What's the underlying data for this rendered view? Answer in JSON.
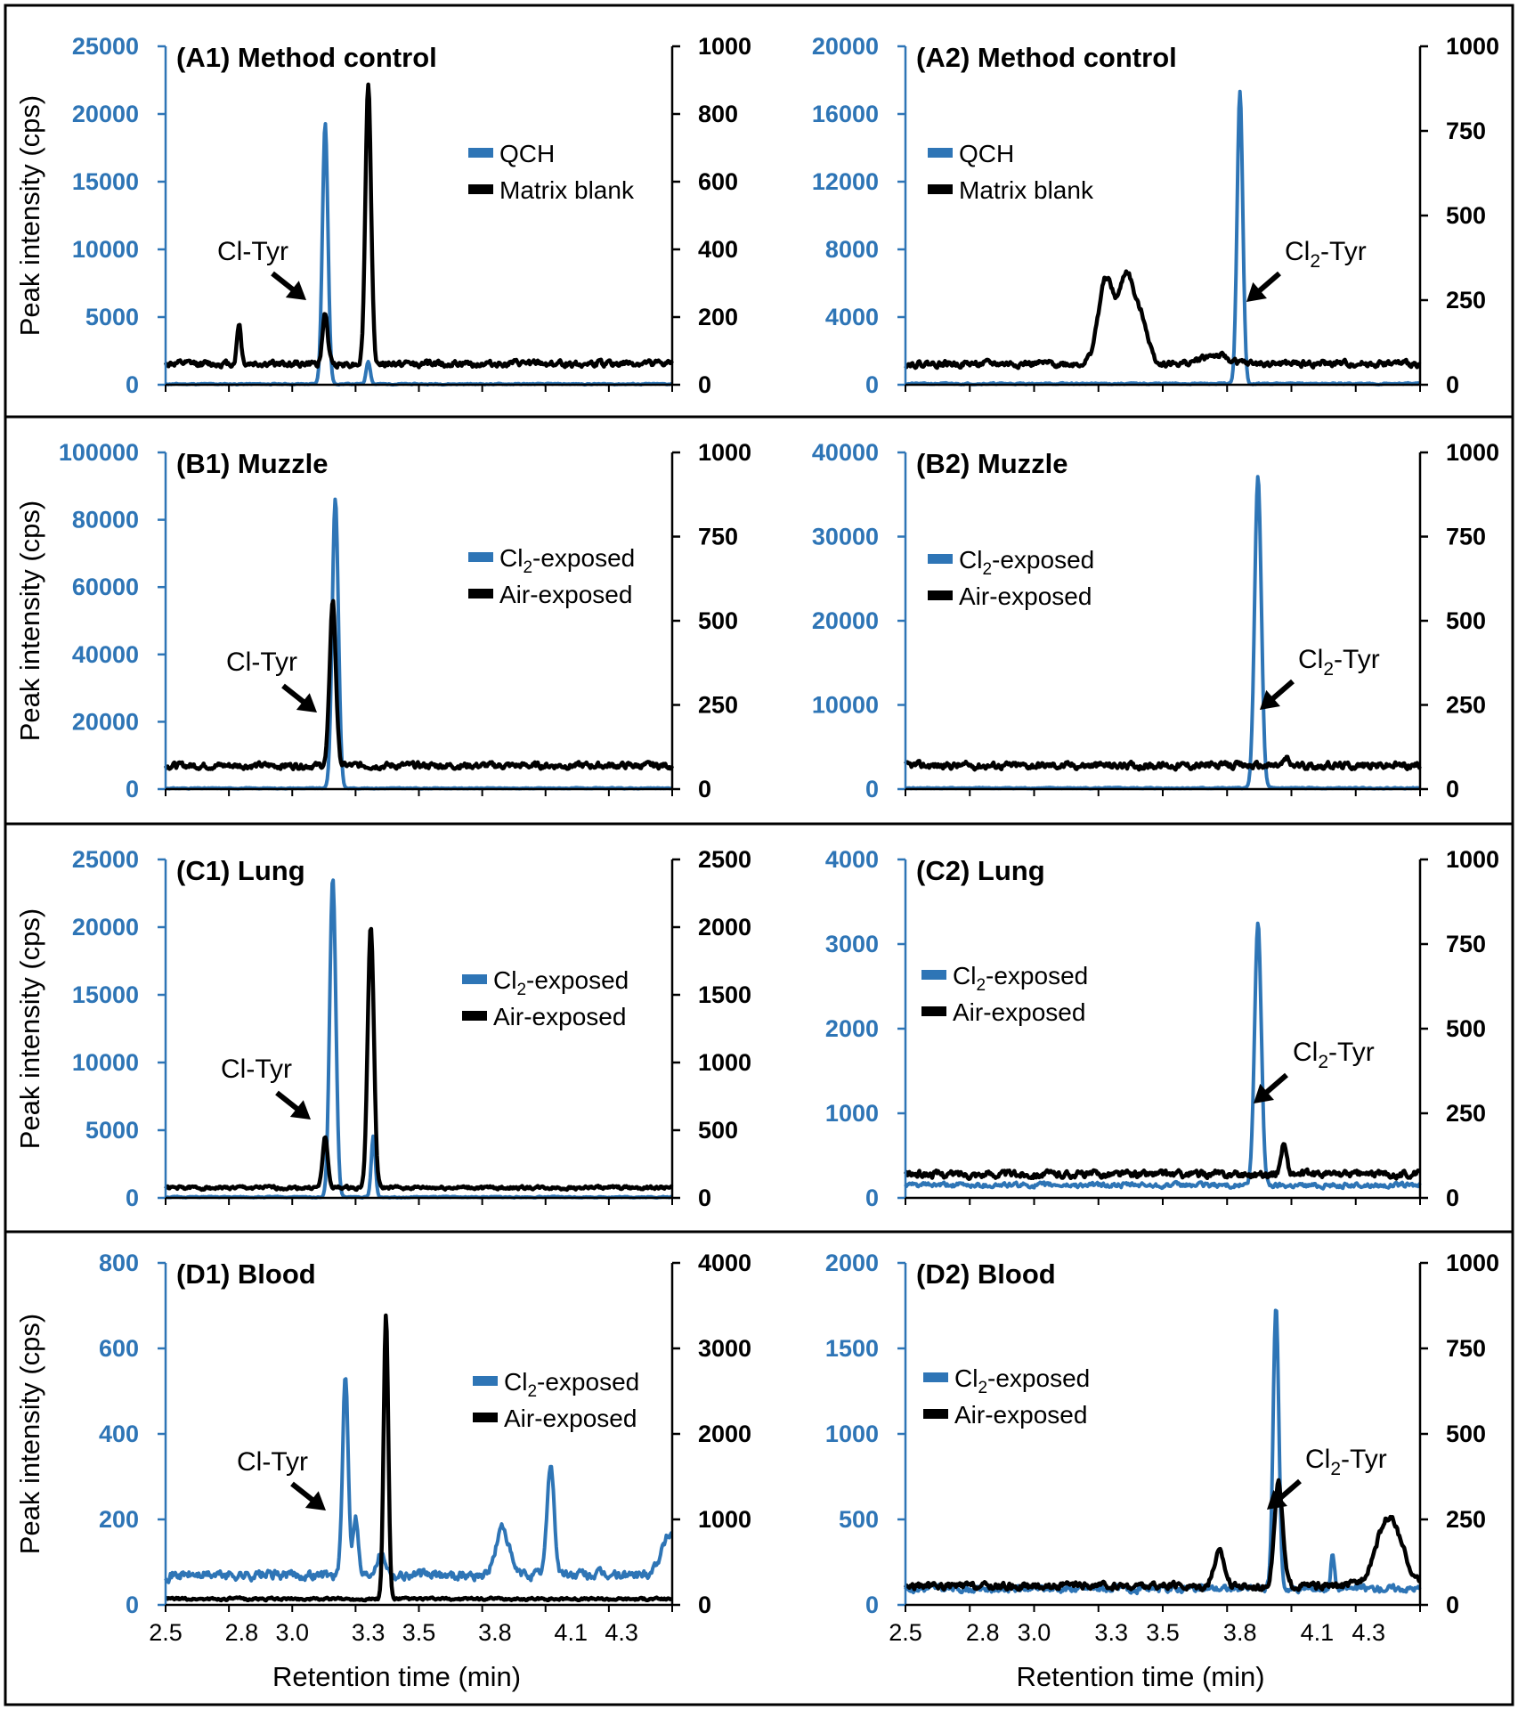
{
  "figure": {
    "y_label": "Peak intensity (cps)",
    "x_label": "Retention time (min)"
  },
  "colors": {
    "blue": "#2E75B6",
    "black": "#000000"
  },
  "chart_data": [
    {
      "type": "line",
      "panel": "A1",
      "title": "(A1) Method control",
      "xlim": [
        2.5,
        4.5
      ],
      "x_ticks": [
        2.5,
        2.8,
        3.0,
        3.3,
        3.5,
        3.8,
        4.1,
        4.3
      ],
      "y_left": {
        "lim": [
          0,
          25000
        ],
        "ticks": [
          0,
          5000,
          10000,
          15000,
          20000,
          25000
        ]
      },
      "y_right": {
        "lim": [
          0,
          1000
        ],
        "ticks": [
          0,
          200,
          400,
          600,
          800,
          1000
        ]
      },
      "series": [
        {
          "name": "QCH",
          "axis": "left",
          "color": "#2E75B6",
          "baseline": 50,
          "noise": 40,
          "seed": 11,
          "peaks": [
            {
              "x": 3.13,
              "height": 19300,
              "width": 0.011
            },
            {
              "x": 3.3,
              "height": 1700,
              "width": 0.008
            }
          ]
        },
        {
          "name": "Matrix blank",
          "axis": "right",
          "color": "#000000",
          "baseline": 62,
          "noise": 9,
          "seed": 12,
          "peaks": [
            {
              "x": 2.79,
              "height": 120,
              "width": 0.008
            },
            {
              "x": 3.13,
              "height": 150,
              "width": 0.01
            },
            {
              "x": 3.3,
              "height": 830,
              "width": 0.011
            }
          ]
        }
      ],
      "annotation": {
        "base": "Cl",
        "sub": "",
        "tail": "-Tyr"
      }
    },
    {
      "type": "line",
      "panel": "A2",
      "title": "(A2) Method control",
      "xlim": [
        2.5,
        4.5
      ],
      "x_ticks": [
        2.5,
        2.8,
        3.0,
        3.3,
        3.5,
        3.8,
        4.1,
        4.3
      ],
      "y_left": {
        "lim": [
          0,
          20000
        ],
        "ticks": [
          0,
          4000,
          8000,
          12000,
          16000,
          20000
        ]
      },
      "y_right": {
        "lim": [
          0,
          1000
        ],
        "ticks": [
          0,
          250,
          500,
          750,
          1000
        ]
      },
      "series": [
        {
          "name": "QCH",
          "axis": "left",
          "color": "#2E75B6",
          "baseline": 60,
          "noise": 40,
          "seed": 21,
          "peaks": [
            {
              "x": 3.8,
              "height": 17300,
              "width": 0.011
            }
          ]
        },
        {
          "name": "Matrix blank",
          "axis": "right",
          "color": "#000000",
          "baseline": 62,
          "noise": 9,
          "seed": 22,
          "peaks": [
            {
              "x": 3.28,
              "height": 250,
              "width": 0.03
            },
            {
              "x": 3.36,
              "height": 260,
              "width": 0.028
            },
            {
              "x": 3.42,
              "height": 120,
              "width": 0.025
            },
            {
              "x": 3.7,
              "height": 25,
              "width": 0.05
            }
          ]
        }
      ],
      "annotation": {
        "base": "Cl",
        "sub": "2",
        "tail": "-Tyr"
      }
    },
    {
      "type": "line",
      "panel": "B1",
      "title": "(B1) Muzzle",
      "xlim": [
        2.5,
        4.5
      ],
      "x_ticks": [
        2.5,
        2.8,
        3.0,
        3.3,
        3.5,
        3.8,
        4.1,
        4.3
      ],
      "y_left": {
        "lim": [
          0,
          100000
        ],
        "ticks": [
          0,
          20000,
          40000,
          60000,
          80000,
          100000
        ]
      },
      "y_right": {
        "lim": [
          0,
          1000
        ],
        "ticks": [
          0,
          250,
          500,
          750,
          1000
        ]
      },
      "series": [
        {
          "name": "Cl2-exposed",
          "label_base": "Cl",
          "label_sub": "2",
          "label_tail": "-exposed",
          "axis": "left",
          "color": "#2E75B6",
          "baseline": 250,
          "noise": 120,
          "seed": 31,
          "peaks": [
            {
              "x": 3.17,
              "height": 86000,
              "width": 0.012
            }
          ]
        },
        {
          "name": "Air-exposed",
          "axis": "right",
          "color": "#000000",
          "baseline": 70,
          "noise": 9,
          "seed": 32,
          "peaks": [
            {
              "x": 3.16,
              "height": 490,
              "width": 0.012
            }
          ]
        }
      ],
      "annotation": {
        "base": "Cl",
        "sub": "",
        "tail": "-Tyr"
      }
    },
    {
      "type": "line",
      "panel": "B2",
      "title": "(B2) Muzzle",
      "xlim": [
        2.5,
        4.5
      ],
      "x_ticks": [
        2.5,
        2.8,
        3.0,
        3.3,
        3.5,
        3.8,
        4.1,
        4.3
      ],
      "y_left": {
        "lim": [
          0,
          40000
        ],
        "ticks": [
          0,
          10000,
          20000,
          30000,
          40000
        ]
      },
      "y_right": {
        "lim": [
          0,
          1000
        ],
        "ticks": [
          0,
          250,
          500,
          750,
          1000
        ]
      },
      "series": [
        {
          "name": "Cl2-exposed",
          "label_base": "Cl",
          "label_sub": "2",
          "label_tail": "-exposed",
          "axis": "left",
          "color": "#2E75B6",
          "baseline": 120,
          "noise": 60,
          "seed": 41,
          "peaks": [
            {
              "x": 3.87,
              "height": 37000,
              "width": 0.013
            }
          ]
        },
        {
          "name": "Air-exposed",
          "axis": "right",
          "color": "#000000",
          "baseline": 70,
          "noise": 10,
          "seed": 42,
          "peaks": [
            {
              "x": 3.98,
              "height": 20,
              "width": 0.01
            }
          ]
        }
      ],
      "annotation": {
        "base": "Cl",
        "sub": "2",
        "tail": "-Tyr"
      }
    },
    {
      "type": "line",
      "panel": "C1",
      "title": "(C1) Lung",
      "xlim": [
        2.5,
        4.5
      ],
      "x_ticks": [
        2.5,
        2.8,
        3.0,
        3.3,
        3.5,
        3.8,
        4.1,
        4.3
      ],
      "y_left": {
        "lim": [
          0,
          25000
        ],
        "ticks": [
          0,
          5000,
          10000,
          15000,
          20000,
          25000
        ]
      },
      "y_right": {
        "lim": [
          0,
          2500
        ],
        "ticks": [
          0,
          500,
          1000,
          1500,
          2000,
          2500
        ]
      },
      "series": [
        {
          "name": "Cl2-exposed",
          "label_base": "Cl",
          "label_sub": "2",
          "label_tail": "-exposed",
          "axis": "left",
          "color": "#2E75B6",
          "baseline": 60,
          "noise": 40,
          "seed": 51,
          "peaks": [
            {
              "x": 3.16,
              "height": 23600,
              "width": 0.012
            },
            {
              "x": 3.32,
              "height": 4500,
              "width": 0.008
            }
          ]
        },
        {
          "name": "Air-exposed",
          "axis": "right",
          "color": "#000000",
          "baseline": 75,
          "noise": 12,
          "seed": 52,
          "peaks": [
            {
              "x": 3.13,
              "height": 380,
              "width": 0.01
            },
            {
              "x": 3.31,
              "height": 1930,
              "width": 0.012
            }
          ]
        }
      ],
      "annotation": {
        "base": "Cl",
        "sub": "",
        "tail": "-Tyr"
      }
    },
    {
      "type": "line",
      "panel": "C2",
      "title": "(C2) Lung",
      "xlim": [
        2.5,
        4.5
      ],
      "x_ticks": [
        2.5,
        2.8,
        3.0,
        3.3,
        3.5,
        3.8,
        4.1,
        4.3
      ],
      "y_left": {
        "lim": [
          0,
          4000
        ],
        "ticks": [
          0,
          1000,
          2000,
          3000,
          4000
        ]
      },
      "y_right": {
        "lim": [
          0,
          1000
        ],
        "ticks": [
          0,
          250,
          500,
          750,
          1000
        ]
      },
      "series": [
        {
          "name": "Cl2-exposed",
          "label_base": "Cl",
          "label_sub": "2",
          "label_tail": "-exposed",
          "axis": "left",
          "color": "#2E75B6",
          "baseline": 150,
          "noise": 28,
          "seed": 61,
          "peaks": [
            {
              "x": 3.87,
              "height": 3100,
              "width": 0.013
            }
          ]
        },
        {
          "name": "Air-exposed",
          "axis": "right",
          "color": "#000000",
          "baseline": 70,
          "noise": 10,
          "seed": 62,
          "peaks": [
            {
              "x": 3.97,
              "height": 90,
              "width": 0.011
            }
          ]
        }
      ],
      "annotation": {
        "base": "Cl",
        "sub": "2",
        "tail": "-Tyr"
      }
    },
    {
      "type": "line",
      "panel": "D1",
      "title": "(D1) Blood",
      "xlim": [
        2.5,
        4.5
      ],
      "x_ticks": [
        2.5,
        2.8,
        3.0,
        3.3,
        3.5,
        3.8,
        4.1,
        4.3
      ],
      "y_left": {
        "lim": [
          0,
          800
        ],
        "ticks": [
          0,
          200,
          400,
          600,
          800
        ]
      },
      "y_right": {
        "lim": [
          0,
          4000
        ],
        "ticks": [
          0,
          1000,
          2000,
          3000,
          4000
        ]
      },
      "series": [
        {
          "name": "Cl2-exposed",
          "label_base": "Cl",
          "label_sub": "2",
          "label_tail": "-exposed",
          "axis": "left",
          "color": "#2E75B6",
          "baseline": 70,
          "noise": 11,
          "seed": 71,
          "peaks": [
            {
              "x": 3.21,
              "height": 470,
              "width": 0.011
            },
            {
              "x": 3.25,
              "height": 140,
              "width": 0.01
            },
            {
              "x": 3.35,
              "height": 50,
              "width": 0.02
            },
            {
              "x": 3.83,
              "height": 110,
              "width": 0.025
            },
            {
              "x": 4.02,
              "height": 260,
              "width": 0.014
            },
            {
              "x": 4.5,
              "height": 100,
              "width": 0.04
            }
          ]
        },
        {
          "name": "Air-exposed",
          "axis": "right",
          "color": "#000000",
          "baseline": 70,
          "noise": 14,
          "seed": 72,
          "peaks": [
            {
              "x": 3.37,
              "height": 3320,
              "width": 0.009
            }
          ]
        }
      ],
      "annotation": {
        "base": "Cl",
        "sub": "",
        "tail": "-Tyr"
      }
    },
    {
      "type": "line",
      "panel": "D2",
      "title": "(D2) Blood",
      "xlim": [
        2.5,
        4.5
      ],
      "x_ticks": [
        2.5,
        2.8,
        3.0,
        3.3,
        3.5,
        3.8,
        4.1,
        4.3
      ],
      "y_left": {
        "lim": [
          0,
          2000
        ],
        "ticks": [
          0,
          500,
          1000,
          1500,
          2000
        ]
      },
      "y_right": {
        "lim": [
          0,
          1000
        ],
        "ticks": [
          0,
          250,
          500,
          750,
          1000
        ]
      },
      "series": [
        {
          "name": "Cl2-exposed",
          "label_base": "Cl",
          "label_sub": "2",
          "label_tail": "-exposed",
          "axis": "left",
          "color": "#2E75B6",
          "baseline": 95,
          "noise": 20,
          "seed": 81,
          "peaks": [
            {
              "x": 3.94,
              "height": 1650,
              "width": 0.011
            },
            {
              "x": 4.16,
              "height": 200,
              "width": 0.007
            }
          ]
        },
        {
          "name": "Air-exposed",
          "axis": "right",
          "color": "#000000",
          "baseline": 55,
          "noise": 10,
          "seed": 82,
          "peaks": [
            {
              "x": 3.72,
              "height": 100,
              "width": 0.02
            },
            {
              "x": 3.95,
              "height": 300,
              "width": 0.016
            },
            {
              "x": 4.38,
              "height": 200,
              "width": 0.05
            }
          ]
        }
      ],
      "annotation": {
        "base": "Cl",
        "sub": "2",
        "tail": "-Tyr"
      }
    }
  ]
}
